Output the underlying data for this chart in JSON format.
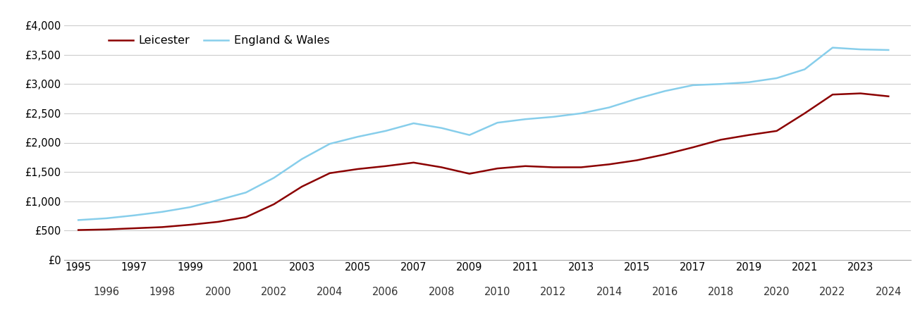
{
  "years": [
    1995,
    1996,
    1997,
    1998,
    1999,
    2000,
    2001,
    2002,
    2003,
    2004,
    2005,
    2006,
    2007,
    2008,
    2009,
    2010,
    2011,
    2012,
    2013,
    2014,
    2015,
    2016,
    2017,
    2018,
    2019,
    2020,
    2021,
    2022,
    2023,
    2024
  ],
  "leicester": [
    510,
    520,
    540,
    560,
    600,
    650,
    730,
    950,
    1250,
    1480,
    1550,
    1600,
    1660,
    1580,
    1470,
    1560,
    1600,
    1580,
    1580,
    1630,
    1700,
    1800,
    1920,
    2050,
    2130,
    2200,
    2500,
    2820,
    2840,
    2790
  ],
  "england_wales": [
    680,
    710,
    760,
    820,
    900,
    1020,
    1150,
    1400,
    1720,
    1980,
    2100,
    2200,
    2330,
    2250,
    2130,
    2340,
    2400,
    2440,
    2500,
    2600,
    2750,
    2880,
    2980,
    3000,
    3030,
    3100,
    3250,
    3620,
    3590,
    3580
  ],
  "leicester_color": "#8B0000",
  "england_wales_color": "#87CEEB",
  "legend_leicester": "Leicester",
  "legend_england_wales": "England & Wales",
  "ylim": [
    0,
    4000
  ],
  "yticks": [
    0,
    500,
    1000,
    1500,
    2000,
    2500,
    3000,
    3500,
    4000
  ],
  "ytick_labels": [
    "£0",
    "£500",
    "£1,000",
    "£1,500",
    "£2,000",
    "£2,500",
    "£3,000",
    "£3,500",
    "£4,000"
  ],
  "background_color": "#ffffff",
  "grid_color": "#cccccc",
  "line_width": 1.8,
  "legend_fontsize": 11.5,
  "tick_fontsize": 10.5,
  "xlim_left": 1994.5,
  "xlim_right": 2024.8
}
